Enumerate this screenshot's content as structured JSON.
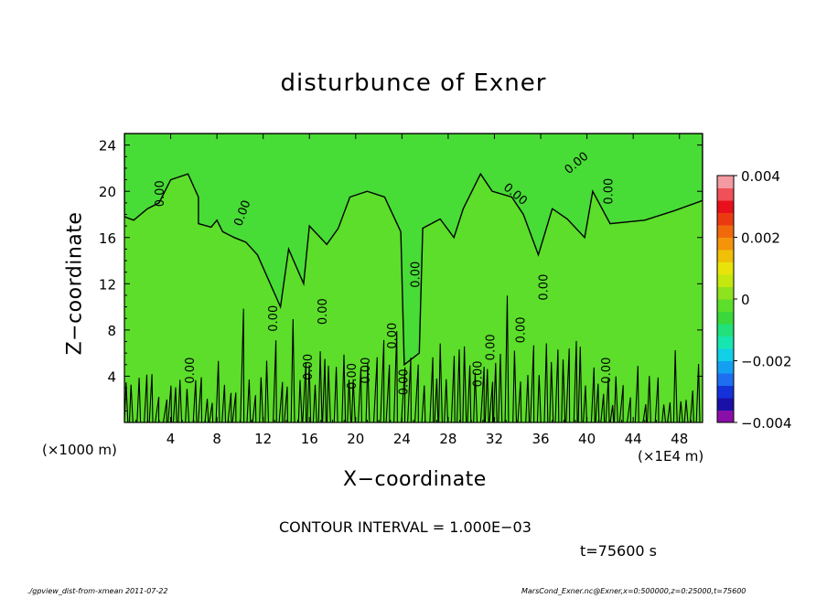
{
  "title": "disturbunce of Exner",
  "xlabel": "X−coordinate",
  "ylabel": "Z−coordinate",
  "x_unit_left": "(×1000 m)",
  "x_unit_right": "(×1E4 m)",
  "contour_interval": "CONTOUR INTERVAL = 1.000E−03",
  "time_label": "t=75600 s",
  "footer_left": "./gpview_dist-from-xmean   2011-07-22",
  "footer_right": "MarsCond_Exner.nc@Exner,x=0:500000,z=0:25000,t=75600",
  "chart_data": {
    "type": "heatmap",
    "title": "disturbunce of Exner",
    "xlabel": "X−coordinate",
    "ylabel": "Z−coordinate",
    "xlim": [
      0,
      50
    ],
    "ylim": [
      0,
      25
    ],
    "xticks": [
      4,
      8,
      12,
      16,
      20,
      24,
      28,
      32,
      36,
      40,
      44,
      48
    ],
    "yticks": [
      4,
      8,
      12,
      16,
      20,
      24
    ],
    "contour_level_labels": [
      "0.00"
    ],
    "colorbar": {
      "range": [
        -0.004,
        0.004
      ],
      "tick_values": [
        0.004,
        0.002,
        0,
        -0.002,
        -0.004
      ],
      "tick_labels": [
        "0.004",
        "0.002",
        "0",
        "−0.002",
        "−0.004"
      ],
      "colors": [
        "#8a0fa8",
        "#1a10a8",
        "#1432d8",
        "#1e6ef0",
        "#14a0f0",
        "#12d0e6",
        "#18e6b0",
        "#22e07a",
        "#3ad83a",
        "#5cde2a",
        "#8ee21e",
        "#c4e80e",
        "#e8e40a",
        "#f0c008",
        "#f4940a",
        "#f06a0c",
        "#ec3a10",
        "#e8101c",
        "#f05058",
        "#f49aa0"
      ]
    },
    "grid": false
  }
}
